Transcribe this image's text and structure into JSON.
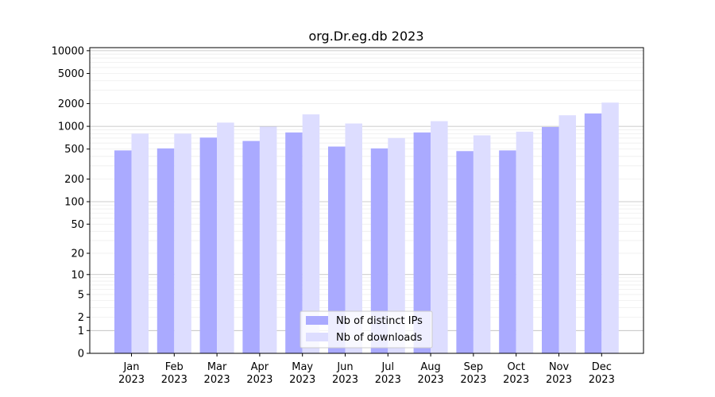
{
  "chart_data": {
    "type": "bar",
    "title": "org.Dr.eg.db 2023",
    "xlabel": "",
    "ylabel": "",
    "y_scale": "log(1+y)",
    "ylim": [
      0,
      10000
    ],
    "y_ticks": [
      "0",
      "1",
      "2",
      "5",
      "10",
      "20",
      "50",
      "100",
      "200",
      "500",
      "1000",
      "2000",
      "5000",
      "10000"
    ],
    "categories": [
      {
        "month": "Jan",
        "year": "2023"
      },
      {
        "month": "Feb",
        "year": "2023"
      },
      {
        "month": "Mar",
        "year": "2023"
      },
      {
        "month": "Apr",
        "year": "2023"
      },
      {
        "month": "May",
        "year": "2023"
      },
      {
        "month": "Jun",
        "year": "2023"
      },
      {
        "month": "Jul",
        "year": "2023"
      },
      {
        "month": "Aug",
        "year": "2023"
      },
      {
        "month": "Sep",
        "year": "2023"
      },
      {
        "month": "Oct",
        "year": "2023"
      },
      {
        "month": "Nov",
        "year": "2023"
      },
      {
        "month": "Dec",
        "year": "2023"
      }
    ],
    "series": [
      {
        "name": "Nb of distinct IPs",
        "color": "#aaaaff",
        "values": [
          480,
          510,
          710,
          640,
          830,
          540,
          510,
          830,
          470,
          480,
          980,
          1480
        ]
      },
      {
        "name": "Nb of downloads",
        "color": "#ddddff",
        "values": [
          800,
          800,
          1120,
          990,
          1440,
          1090,
          700,
          1170,
          760,
          850,
          1400,
          2060
        ]
      }
    ],
    "grid": "horizontal",
    "legend_position": "bottom-center"
  }
}
